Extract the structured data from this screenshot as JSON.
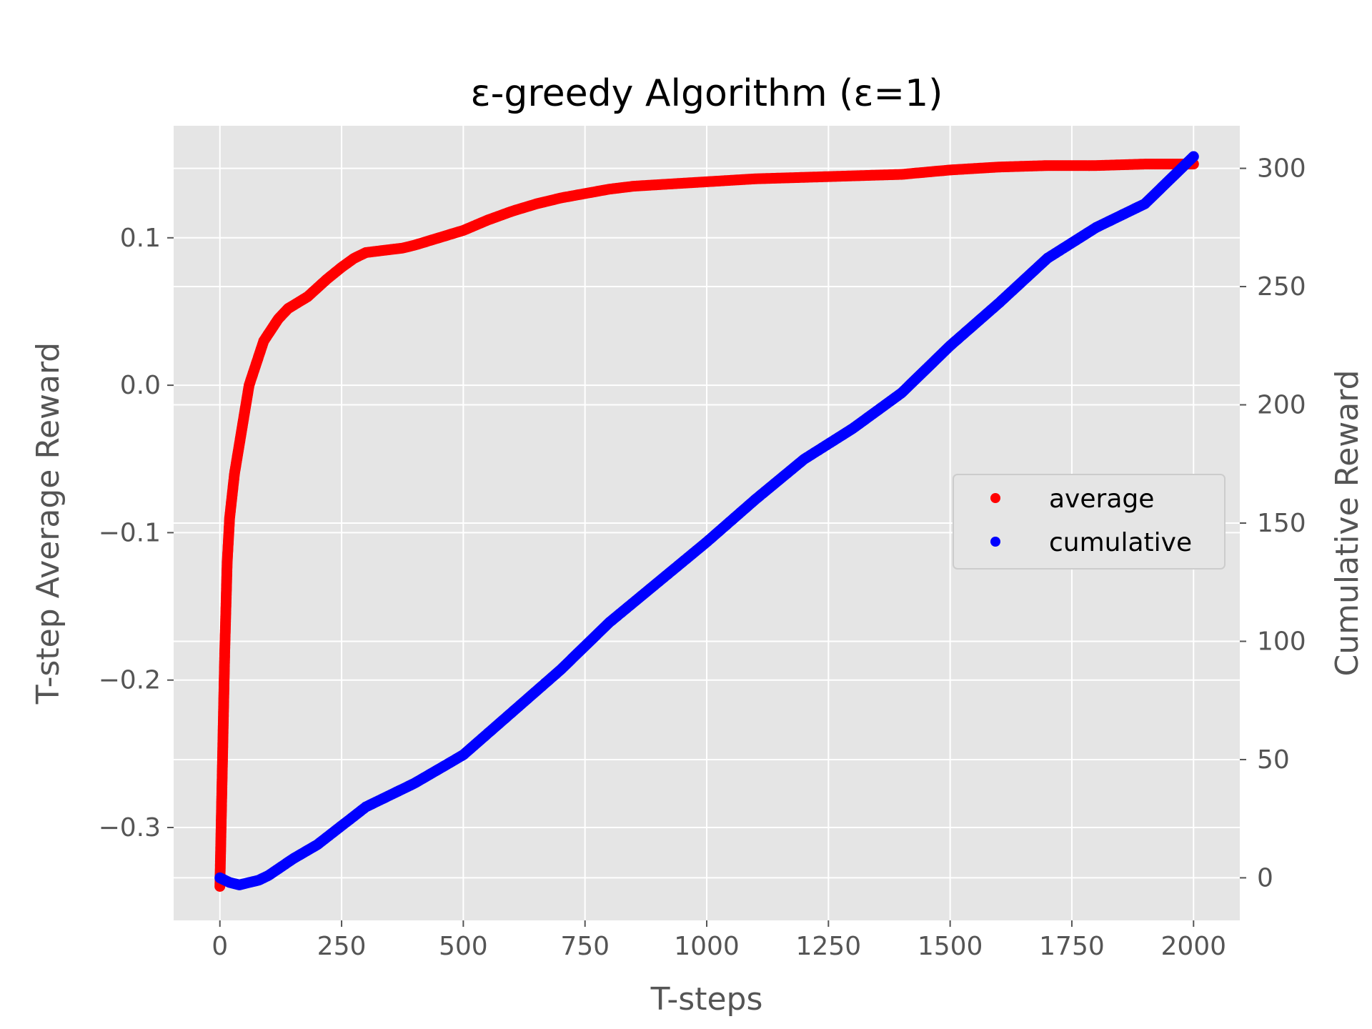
{
  "chart_data": {
    "type": "scatter",
    "title": "ε-greedy Algorithm (ε=1)",
    "xlabel": "T-steps",
    "ylabel_left": "T-step Average Reward",
    "ylabel_right": "Cumulative Reward",
    "xlim": [
      -95,
      2095
    ],
    "ylim_left": [
      -0.363,
      0.176
    ],
    "ylim_right": [
      -18,
      318
    ],
    "x_ticks": [
      0,
      250,
      500,
      750,
      1000,
      1250,
      1500,
      1750,
      2000
    ],
    "x_tick_labels": [
      "0",
      "250",
      "500",
      "750",
      "1000",
      "1250",
      "1500",
      "1750",
      "2000"
    ],
    "y_left_ticks": [
      -0.3,
      -0.2,
      -0.1,
      0.0,
      0.1
    ],
    "y_left_tick_labels": [
      "−0.3",
      "−0.2",
      "−0.1",
      "0.0",
      "0.1"
    ],
    "y_right_ticks": [
      0,
      50,
      100,
      150,
      200,
      250,
      300
    ],
    "y_right_tick_labels": [
      "0",
      "50",
      "100",
      "150",
      "200",
      "250",
      "300"
    ],
    "grid": true,
    "legend_position": "center-right",
    "background_color": "#e5e5e5",
    "grid_color": "#ffffff",
    "series": [
      {
        "name": "average",
        "axis": "left",
        "color": "#ff0000",
        "x": [
          0,
          5,
          10,
          15,
          20,
          25,
          30,
          40,
          50,
          60,
          70,
          80,
          90,
          100,
          120,
          140,
          160,
          180,
          200,
          220,
          250,
          275,
          300,
          325,
          350,
          375,
          400,
          450,
          500,
          550,
          600,
          650,
          700,
          750,
          800,
          850,
          900,
          1000,
          1100,
          1200,
          1300,
          1400,
          1500,
          1600,
          1700,
          1800,
          1900,
          2000
        ],
        "y": [
          -0.34,
          -0.26,
          -0.18,
          -0.12,
          -0.09,
          -0.075,
          -0.06,
          -0.04,
          -0.02,
          0.0,
          0.01,
          0.02,
          0.03,
          0.035,
          0.045,
          0.052,
          0.056,
          0.06,
          0.066,
          0.072,
          0.08,
          0.086,
          0.09,
          0.091,
          0.092,
          0.093,
          0.095,
          0.1,
          0.105,
          0.112,
          0.118,
          0.123,
          0.127,
          0.13,
          0.133,
          0.135,
          0.136,
          0.138,
          0.14,
          0.141,
          0.142,
          0.143,
          0.146,
          0.148,
          0.149,
          0.149,
          0.15,
          0.15
        ]
      },
      {
        "name": "cumulative",
        "axis": "right",
        "color": "#0000ff",
        "x": [
          0,
          20,
          40,
          60,
          80,
          100,
          150,
          200,
          250,
          300,
          400,
          500,
          600,
          700,
          800,
          900,
          1000,
          1100,
          1200,
          1300,
          1400,
          1500,
          1600,
          1700,
          1800,
          1900,
          1950,
          2000
        ],
        "y": [
          0,
          -2,
          -3,
          -2,
          -1,
          1,
          8,
          14,
          22,
          30,
          40,
          52,
          70,
          88,
          108,
          125,
          142,
          160,
          177,
          190,
          205,
          225,
          243,
          262,
          275,
          285,
          295,
          305
        ]
      }
    ]
  }
}
